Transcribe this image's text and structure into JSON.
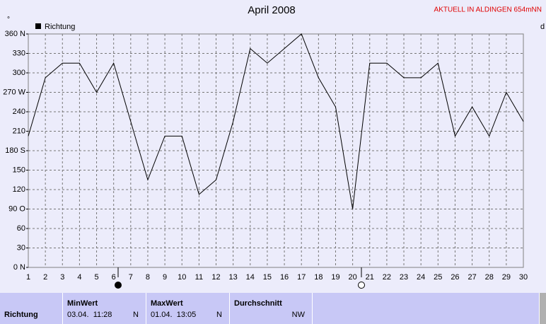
{
  "chart_data": {
    "type": "line",
    "title": "April 2008",
    "annotation": "AKTUELL IN ALDINGEN 654mNN",
    "y_unit": "°",
    "right_label": "d",
    "x": [
      1,
      2,
      3,
      4,
      5,
      6,
      7,
      8,
      9,
      10,
      11,
      12,
      13,
      14,
      15,
      16,
      17,
      18,
      19,
      20,
      21,
      22,
      23,
      24,
      25,
      26,
      27,
      28,
      29,
      30
    ],
    "xlim": [
      1,
      30
    ],
    "xticks": [
      1,
      2,
      3,
      4,
      5,
      6,
      7,
      8,
      9,
      10,
      11,
      12,
      13,
      14,
      15,
      16,
      17,
      18,
      19,
      20,
      21,
      22,
      23,
      24,
      25,
      26,
      27,
      28,
      29,
      30
    ],
    "ylim": [
      0,
      360
    ],
    "yticks": [
      {
        "value": 0,
        "label": "0 N"
      },
      30,
      60,
      {
        "value": 90,
        "label": "90 O"
      },
      120,
      150,
      {
        "value": 180,
        "label": "180 S"
      },
      210,
      240,
      {
        "value": 270,
        "label": "270 W"
      },
      300,
      330,
      {
        "value": 360,
        "label": "360 N"
      }
    ],
    "grid": true,
    "series": [
      {
        "name": "Richtung",
        "color": "#000000",
        "values": [
          202.5,
          292.5,
          315,
          315,
          270,
          315,
          225,
          135,
          202.5,
          202.5,
          112.5,
          135,
          225,
          337.5,
          315,
          337.5,
          360,
          292.5,
          247.5,
          90,
          315,
          315,
          292.5,
          292.5,
          315,
          202.5,
          247.5,
          202.5,
          270,
          225
        ]
      }
    ]
  },
  "stats": {
    "row_label": "Richtung",
    "columns": [
      {
        "header": "MinWert",
        "datetime": "03.04.  11:28",
        "direction": "N"
      },
      {
        "header": "MaxWert",
        "datetime": "01.04.  13:05",
        "direction": "N"
      },
      {
        "header": "Durchschnitt",
        "direction": "NW"
      }
    ]
  }
}
